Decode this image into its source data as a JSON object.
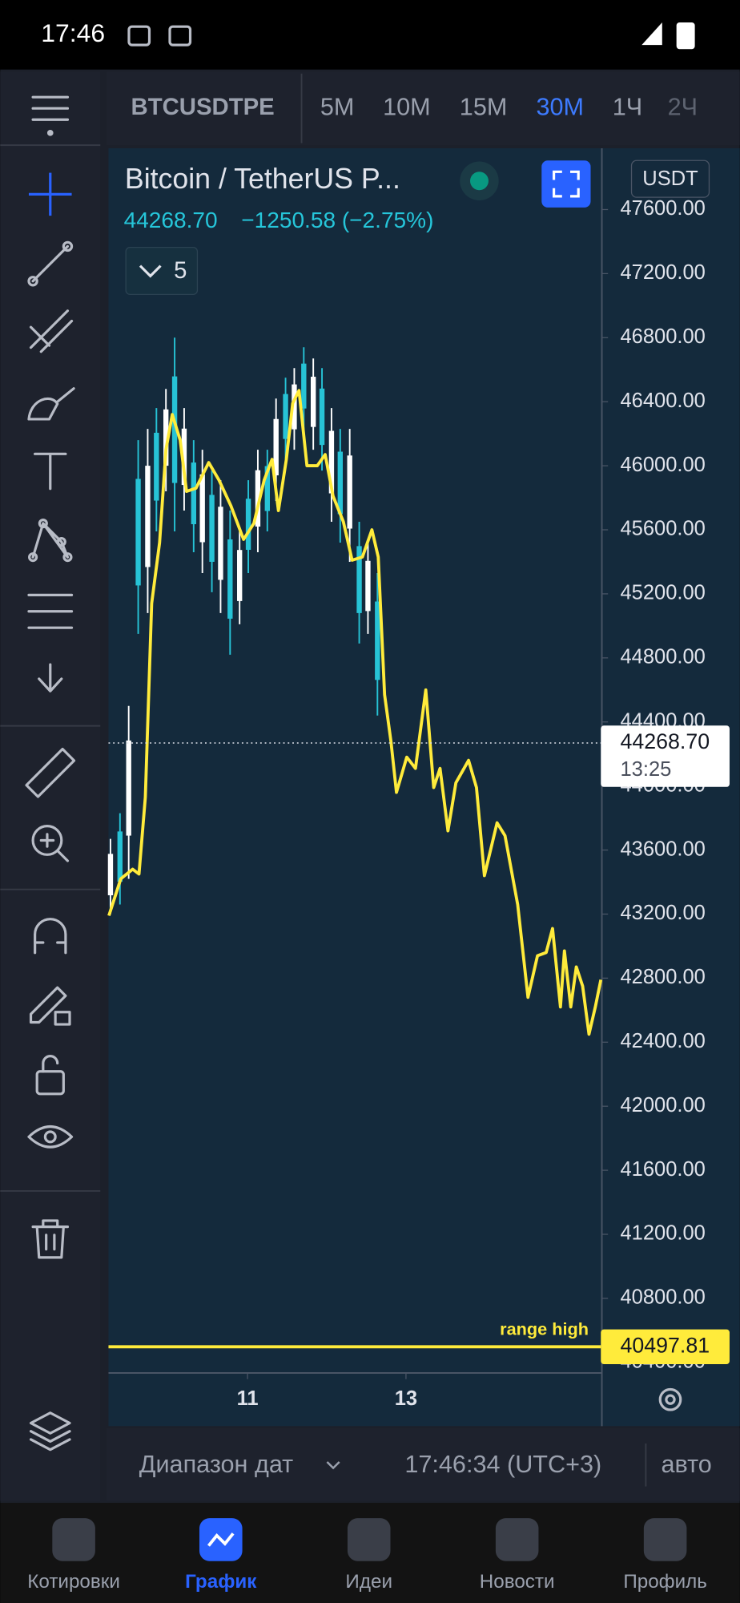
{
  "status_bar": {
    "time": "17:46"
  },
  "toolbar": {
    "symbol": "BTCUSDTPE",
    "intervals": [
      "5М",
      "10М",
      "15М",
      "30М",
      "1Ч",
      "2Ч"
    ],
    "active_interval": 3
  },
  "chart_header": {
    "title": "Bitcoin / TetherUS P...",
    "price": "44268.70",
    "change": "−1250.58 (−2.75%)",
    "indicators": "5",
    "currency": "USDT"
  },
  "chart_data": {
    "type": "line",
    "x": [
      9.25,
      9.4,
      9.55,
      9.63,
      9.71,
      9.79,
      9.89,
      9.97,
      10.05,
      10.15,
      10.23,
      10.35,
      10.51,
      10.64,
      10.79,
      10.95,
      11.08,
      11.21,
      11.31,
      11.39,
      11.49,
      11.57,
      11.65,
      11.75,
      11.88,
      11.98,
      12.08,
      12.21,
      12.32,
      12.45,
      12.57,
      12.65,
      12.73,
      12.81,
      12.88,
      13.01,
      13.12,
      13.25,
      13.35,
      13.43,
      13.53,
      13.63,
      13.79,
      13.89,
      13.99,
      14.15,
      14.25,
      14.41,
      14.54,
      14.66,
      14.77,
      14.85,
      14.95,
      15.0,
      15.08,
      15.15,
      15.23,
      15.31,
      15.39,
      15.46
    ],
    "series": [
      {
        "color": "#ffeb3b",
        "values": [
          43190,
          43420,
          43480,
          43450,
          43930,
          45140,
          45520,
          46100,
          46320,
          46160,
          45840,
          45860,
          46020,
          45910,
          45750,
          45540,
          45640,
          45910,
          46040,
          45720,
          46040,
          46390,
          46470,
          46000,
          46000,
          46070,
          45810,
          45650,
          45410,
          45430,
          45600,
          45430,
          44570,
          44280,
          43960,
          44180,
          44110,
          44600,
          43990,
          44110,
          43720,
          44020,
          44160,
          43990,
          43440,
          43770,
          43690,
          43260,
          42680,
          42940,
          42960,
          43110,
          42620,
          42970,
          42620,
          42870,
          42750,
          42450,
          42620,
          42790
        ]
      }
    ],
    "candles": {
      "colors": [
        "#ffffff",
        "#27c3d6"
      ],
      "x": [
        9.27,
        9.39,
        9.5,
        9.62,
        9.74,
        9.85,
        9.97,
        10.08,
        10.2,
        10.32,
        10.43,
        10.55,
        10.66,
        10.78,
        10.9,
        11.01,
        11.13,
        11.25,
        11.36,
        11.48,
        11.59,
        11.71,
        11.83,
        11.94,
        12.06,
        12.17,
        12.29,
        12.41,
        12.52,
        12.64
      ],
      "highs": [
        43670,
        43830,
        44500,
        46160,
        46230,
        46360,
        46480,
        46800,
        46360,
        46160,
        46100,
        45970,
        45910,
        45720,
        45590,
        45910,
        46100,
        46100,
        46420,
        46550,
        46610,
        46740,
        46670,
        46610,
        46360,
        46230,
        46230,
        45650,
        45520,
        45330
      ],
      "lows": [
        43200,
        43260,
        43420,
        44950,
        45080,
        45590,
        45840,
        45590,
        45720,
        45460,
        45330,
        45210,
        45080,
        44820,
        45010,
        45330,
        45460,
        45590,
        45780,
        46040,
        46100,
        46230,
        46100,
        45970,
        45650,
        45520,
        45400,
        44890,
        44950,
        44440
      ]
    },
    "xlim": [
      9.245,
      15.46
    ],
    "ylim": [
      40334,
      47983
    ],
    "xticks": [
      11,
      13
    ],
    "yticks": [
      {
        "value": 47600,
        "label": "47600.00"
      },
      {
        "value": 47200,
        "label": "47200.00"
      },
      {
        "value": 46800,
        "label": "46800.00"
      },
      {
        "value": 46400,
        "label": "46400.00"
      },
      {
        "value": 46000,
        "label": "46000.00"
      },
      {
        "value": 45600,
        "label": "45600.00"
      },
      {
        "value": 45200,
        "label": "45200.00"
      },
      {
        "value": 44800,
        "label": "44800.00"
      },
      {
        "value": 44400,
        "label": "44400.00"
      },
      {
        "value": 44000,
        "label": "44000.00"
      },
      {
        "value": 43600,
        "label": "43600.00"
      },
      {
        "value": 43200,
        "label": "43200.00"
      },
      {
        "value": 42800,
        "label": "42800.00"
      },
      {
        "value": 42400,
        "label": "42400.00"
      },
      {
        "value": 42000,
        "label": "42000.00"
      },
      {
        "value": 41600,
        "label": "41600.00"
      },
      {
        "value": 41200,
        "label": "41200.00"
      },
      {
        "value": 40800,
        "label": "40800.00"
      },
      {
        "value": 40400,
        "label": "40400.00"
      }
    ],
    "last_price": {
      "value": 44268.7,
      "label": "44268.70",
      "time": "13:25"
    },
    "range_line": {
      "value": 40497.81,
      "label": "40497.81",
      "text": "range high",
      "color": "#ffeb3b"
    }
  },
  "bottom_bar": {
    "date_range": "Диапазон дат",
    "clock": "17:46:34 (UTC+3)",
    "mode": "авто"
  },
  "nav": {
    "items": [
      "Котировки",
      "График",
      "Идеи",
      "Новости",
      "Профиль"
    ],
    "active": 1
  }
}
